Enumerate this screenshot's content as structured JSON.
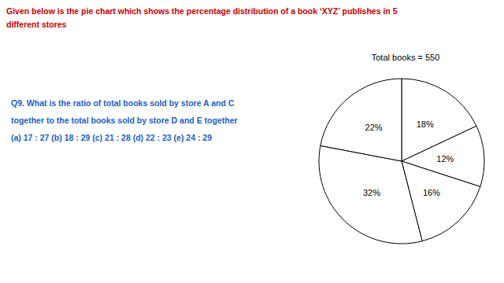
{
  "chart_data": {
    "type": "pie",
    "title": "Total books = 550",
    "values": [
      18,
      12,
      16,
      32,
      22
    ],
    "value_labels": [
      "18%",
      "12%",
      "16%",
      "32%",
      "22%"
    ],
    "colors": [
      "#ffffff",
      "#ffffff",
      "#ffffff",
      "#ffffff",
      "#ffffff"
    ],
    "data_labels": true,
    "annotations": [
      {
        "text": "Given below is the pie chart which shows the percentage distribution of a book ‘XYZ’ publishes in 5",
        "color": "#cc0000"
      },
      {
        "text": "different stores",
        "color": "#cc0000"
      },
      {
        "text": "Q9. What is the ratio of total books sold by store A and C",
        "color": "#1a5fcc"
      },
      {
        "text": "together to the total books sold by store D and E together",
        "color": "#1a5fcc"
      },
      {
        "text": "(a) 17 : 27 (b) 18 : 29 (c) 21 : 28 (d) 22 : 23 (e) 24 : 29",
        "color": "#1a5fcc"
      }
    ]
  }
}
